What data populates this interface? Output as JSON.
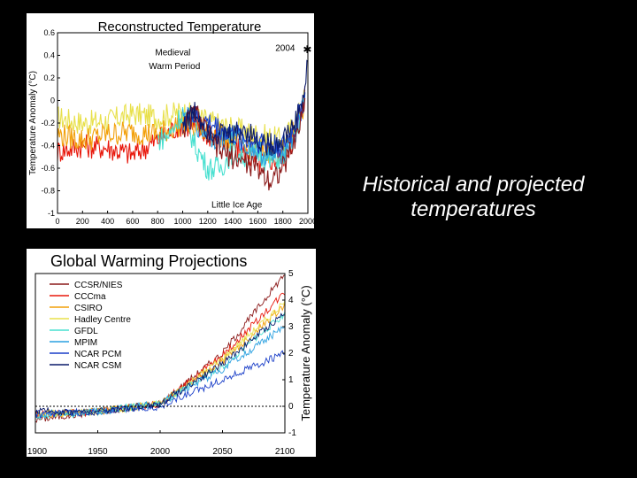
{
  "caption": "Historical and projected temperatures",
  "colors": {
    "background": "#000000",
    "ccsr": "#8b1a1a",
    "cccma": "#e8180c",
    "csiro": "#f2a00a",
    "hadley": "#e8e04a",
    "gfdl": "#48e0d0",
    "mpim": "#2aa0e0",
    "ncar_pcm": "#1a3ec8",
    "ncar_csm": "#0a1a6a"
  },
  "chart_data": [
    {
      "type": "line",
      "title": "Reconstructed Temperature",
      "xlabel": "",
      "ylabel": "Temperature Anomaly (°C)",
      "xlim": [
        0,
        2000
      ],
      "ylim": [
        -1,
        0.6
      ],
      "xticks": [
        "0",
        "200",
        "400",
        "600",
        "800",
        "1000",
        "1200",
        "1400",
        "1600",
        "1800",
        "2000"
      ],
      "yticks": [
        "0.6",
        "0.4",
        "0.2",
        "0",
        "-0.2",
        "-0.4",
        "-0.6",
        "-0.8",
        "-1"
      ],
      "annotations": {
        "medieval": [
          "Medieval",
          "Warm Period"
        ],
        "little_ice_age": "Little Ice Age",
        "year_2004": "2004",
        "star": "✱"
      },
      "series": [
        {
          "color_key": "hadley",
          "start": 0,
          "x": [
            0,
            200,
            400,
            600,
            800,
            1000,
            1200,
            1400,
            1600,
            1800,
            1900,
            1980
          ],
          "values": [
            -0.15,
            -0.2,
            -0.18,
            -0.12,
            -0.15,
            -0.1,
            -0.18,
            -0.25,
            -0.3,
            -0.35,
            -0.2,
            0.05
          ]
        },
        {
          "color_key": "cccma",
          "start": 0,
          "x": [
            0,
            200,
            400,
            600,
            800,
            1000,
            1200,
            1400,
            1600,
            1800,
            1900,
            1980
          ],
          "values": [
            -0.45,
            -0.4,
            -0.42,
            -0.48,
            -0.35,
            -0.2,
            -0.3,
            -0.4,
            -0.55,
            -0.5,
            -0.3,
            0.1
          ]
        },
        {
          "color_key": "csiro",
          "start": 0,
          "x": [
            0,
            200,
            400,
            600,
            800,
            1000,
            1200,
            1400,
            1600,
            1800,
            1900,
            1980
          ],
          "values": [
            -0.3,
            -0.35,
            -0.3,
            -0.28,
            -0.3,
            -0.2,
            -0.28,
            -0.35,
            -0.45,
            -0.45,
            -0.25,
            0.0
          ]
        },
        {
          "color_key": "gfdl",
          "start": 800,
          "x": [
            800,
            900,
            1000,
            1100,
            1200,
            1300,
            1400,
            1500,
            1600,
            1700,
            1800,
            1900,
            1980
          ],
          "values": [
            -0.35,
            -0.3,
            -0.1,
            -0.4,
            -0.6,
            -0.6,
            -0.45,
            -0.5,
            -0.45,
            -0.55,
            -0.5,
            -0.3,
            0.0
          ]
        },
        {
          "color_key": "mpim",
          "start": 1000,
          "x": [
            1000,
            1100,
            1200,
            1300,
            1400,
            1500,
            1600,
            1700,
            1800,
            1900,
            1980
          ],
          "values": [
            -0.15,
            -0.2,
            -0.3,
            -0.35,
            -0.3,
            -0.4,
            -0.45,
            -0.5,
            -0.45,
            -0.3,
            0.05
          ]
        },
        {
          "color_key": "ncar_pcm",
          "start": 1000,
          "x": [
            1000,
            1100,
            1200,
            1300,
            1400,
            1500,
            1600,
            1700,
            1800,
            1900,
            1980
          ],
          "values": [
            -0.2,
            -0.15,
            -0.2,
            -0.25,
            -0.3,
            -0.35,
            -0.35,
            -0.4,
            -0.4,
            -0.25,
            0.05
          ]
        },
        {
          "color_key": "ccsr",
          "start": 1000,
          "x": [
            1000,
            1100,
            1200,
            1300,
            1400,
            1500,
            1600,
            1700,
            1800,
            1900,
            1980
          ],
          "values": [
            -0.25,
            -0.1,
            -0.3,
            -0.45,
            -0.5,
            -0.55,
            -0.6,
            -0.7,
            -0.6,
            -0.35,
            0.0
          ]
        },
        {
          "color_key": "ncar_csm",
          "start": 1000,
          "x": [
            1000,
            1100,
            1200,
            1300,
            1400,
            1500,
            1600,
            1700,
            1800,
            1900,
            1980,
            2004
          ],
          "values": [
            -0.2,
            -0.1,
            -0.25,
            -0.3,
            -0.3,
            -0.25,
            -0.35,
            -0.4,
            -0.35,
            -0.2,
            0.1,
            0.45
          ]
        }
      ]
    },
    {
      "type": "line",
      "title": "Global Warming Projections",
      "xlabel": "",
      "ylabel": "Temperature Anomaly (°C)",
      "xlim": [
        1900,
        2100
      ],
      "ylim": [
        -1,
        5
      ],
      "xticks": [
        "1900",
        "1950",
        "2000",
        "2050",
        "2100"
      ],
      "yticks": [
        "5",
        "4",
        "3",
        "2",
        "1",
        "0",
        "-1"
      ],
      "baseline": 0,
      "series": [
        {
          "name": "CCSR/NIES",
          "color_key": "ccsr",
          "x": [
            1900,
            1950,
            2000,
            2050,
            2100
          ],
          "values": [
            -0.5,
            -0.2,
            0.1,
            2.0,
            5.0
          ]
        },
        {
          "name": "CCCma",
          "color_key": "cccma",
          "x": [
            1900,
            1950,
            2000,
            2050,
            2100
          ],
          "values": [
            -0.3,
            -0.2,
            0.1,
            1.9,
            4.3
          ]
        },
        {
          "name": "CSIRO",
          "color_key": "csiro",
          "x": [
            1900,
            1950,
            2000,
            2050,
            2100
          ],
          "values": [
            -0.3,
            -0.2,
            0.1,
            1.7,
            3.8
          ]
        },
        {
          "name": "Hadley Centre",
          "color_key": "hadley",
          "x": [
            1900,
            1950,
            2000,
            2050,
            2100
          ],
          "values": [
            -0.3,
            -0.2,
            0.1,
            1.8,
            3.9
          ]
        },
        {
          "name": "GFDL",
          "color_key": "gfdl",
          "x": [
            1900,
            1950,
            2000,
            2050,
            2100
          ],
          "values": [
            -0.4,
            -0.2,
            0.1,
            1.5,
            3.5
          ]
        },
        {
          "name": "MPIM",
          "color_key": "mpim",
          "x": [
            1900,
            1950,
            2000,
            2050,
            2100
          ],
          "values": [
            -0.3,
            -0.2,
            0.1,
            1.4,
            3.0
          ]
        },
        {
          "name": "NCAR PCM",
          "color_key": "ncar_pcm",
          "x": [
            1900,
            1950,
            2000,
            2050,
            2100
          ],
          "values": [
            -0.3,
            -0.2,
            0.0,
            1.0,
            2.0
          ]
        },
        {
          "name": "NCAR CSM",
          "color_key": "ncar_csm",
          "x": [
            1900,
            1950,
            2000,
            2050,
            2100
          ],
          "values": [
            -0.2,
            -0.2,
            0.1,
            1.6,
            3.5
          ]
        }
      ]
    }
  ]
}
